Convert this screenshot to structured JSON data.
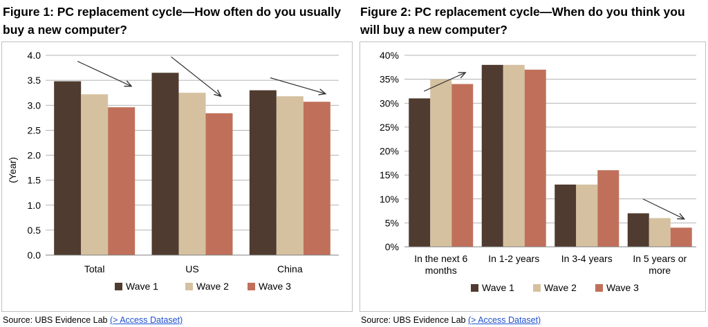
{
  "colors": {
    "wave1": "#4f3b2f",
    "wave2": "#d5c1a0",
    "wave3": "#c0705a",
    "grid": "#9a9a9a",
    "arrow": "#333333"
  },
  "figures": [
    {
      "title": "Figure 1: PC replacement cycle—How often do you usually buy a new computer?",
      "source_prefix": "Source:  UBS Evidence Lab ",
      "source_link": "(> Access Dataset)"
    },
    {
      "title": "Figure 2: PC replacement cycle—When do you think you will buy a new computer?",
      "source_prefix": "Source:  UBS Evidence Lab ",
      "source_link": "(> Access Dataset)"
    }
  ],
  "chart_data": [
    {
      "type": "bar",
      "title": "Figure 1: PC replacement cycle—How often do you usually buy a new computer?",
      "ylabel": "(Year)",
      "xlabel": "",
      "categories": [
        "Total",
        "US",
        "China"
      ],
      "ylim": [
        0,
        4
      ],
      "ytick_values": [
        0,
        0.5,
        1,
        1.5,
        2,
        2.5,
        3,
        3.5,
        4
      ],
      "ytick_labels": [
        "0.0",
        "0.5",
        "1.0",
        "1.5",
        "2.0",
        "2.5",
        "3.0",
        "3.5",
        "4.0"
      ],
      "series": [
        {
          "name": "Wave 1",
          "values": [
            3.48,
            3.65,
            3.3
          ]
        },
        {
          "name": "Wave 2",
          "values": [
            3.22,
            3.25,
            3.18
          ]
        },
        {
          "name": "Wave 3",
          "values": [
            2.96,
            2.84,
            3.07
          ]
        }
      ],
      "grid": true,
      "legend_position": "bottom",
      "annotations": "downward trend arrows over each category"
    },
    {
      "type": "bar",
      "title": "Figure 2: PC replacement cycle—When do you think you will buy a new computer?",
      "xlabel": "",
      "ylabel": "",
      "categories": [
        "In the next 6 months",
        "In 1-2 years",
        "In 3-4 years",
        "In 5 years or more"
      ],
      "ylim": [
        0,
        40
      ],
      "ytick_values": [
        0,
        5,
        10,
        15,
        20,
        25,
        30,
        35,
        40
      ],
      "ytick_labels": [
        "0%",
        "5%",
        "10%",
        "15%",
        "20%",
        "25%",
        "30%",
        "35%",
        "40%"
      ],
      "series": [
        {
          "name": "Wave 1",
          "values": [
            31,
            38,
            13,
            7
          ]
        },
        {
          "name": "Wave 2",
          "values": [
            35,
            38,
            13,
            6
          ]
        },
        {
          "name": "Wave 3",
          "values": [
            34,
            37,
            16,
            4
          ]
        }
      ],
      "grid": true,
      "legend_position": "bottom",
      "annotations": "upward arrow over first category, downward arrow over last category"
    }
  ]
}
